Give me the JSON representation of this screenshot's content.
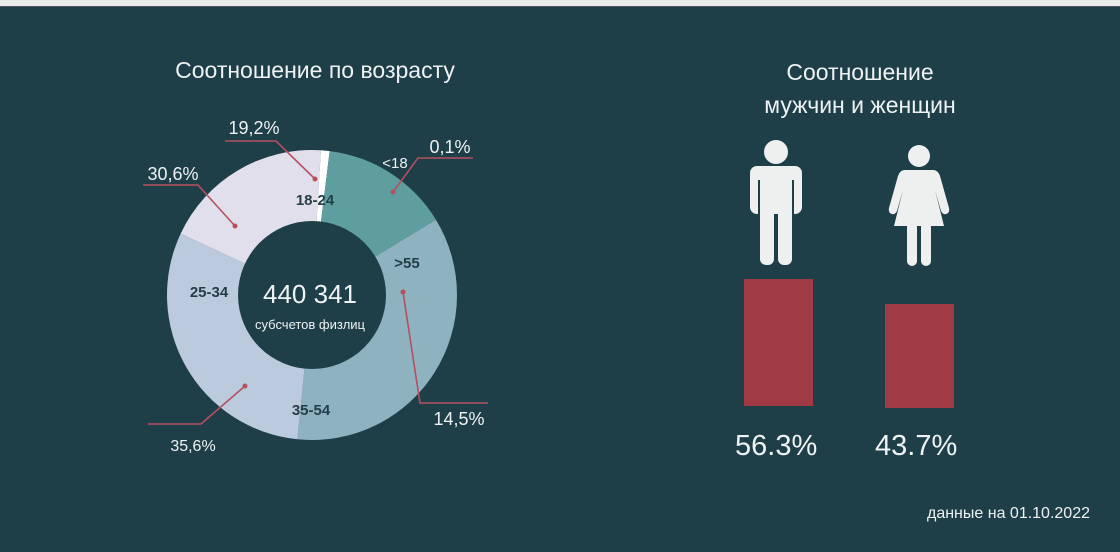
{
  "header": {
    "top_strip": ""
  },
  "age_panel": {
    "title": "Соотношение по возрасту",
    "center_value": "440 341",
    "center_caption": "субсчетов физлиц"
  },
  "gender_panel": {
    "title_line1": "Соотношение",
    "title_line2": "мужчин и женщин",
    "men": {
      "icon": "man-icon",
      "value_label": "56.3%",
      "value": 56.3
    },
    "women": {
      "icon": "woman-icon",
      "value_label": "43.7%",
      "value": 43.7
    },
    "bar_color": "#a03a45"
  },
  "footnote": "данные на 01.10.2022",
  "colors": {
    "background": "#1f3f48",
    "leader_line": "#b5505f",
    "seg_18_24": "#e2dfec",
    "seg_lt18": "#ffffff",
    "seg_gt55": "#5f9e9e",
    "seg_35_54": "#8fb2c1",
    "seg_25_34": "#bccade"
  },
  "chart_data": [
    {
      "type": "pie",
      "subtype": "donut",
      "title": "Соотношение по возрасту",
      "center_label": "440 341 субсчетов физлиц",
      "categories": [
        "18-24",
        "<18",
        ">55",
        "35-54",
        "25-34"
      ],
      "values": [
        19.2,
        0.1,
        14.5,
        35.6,
        30.6
      ],
      "value_labels": [
        "19,2%",
        "0,1%",
        "14,5%",
        "35,6%",
        "30,6%"
      ],
      "colors": [
        "#e2dfec",
        "#ffffff",
        "#5f9e9e",
        "#8fb2c1",
        "#bccade"
      ],
      "legend": "none (labels on slices with leader lines)"
    },
    {
      "type": "bar",
      "title": "Соотношение мужчин и женщин",
      "categories": [
        "Мужчины",
        "Женщины"
      ],
      "values": [
        56.3,
        43.7
      ],
      "value_labels": [
        "56.3%",
        "43.7%"
      ],
      "color": "#a03a45",
      "axes": "hidden"
    }
  ]
}
